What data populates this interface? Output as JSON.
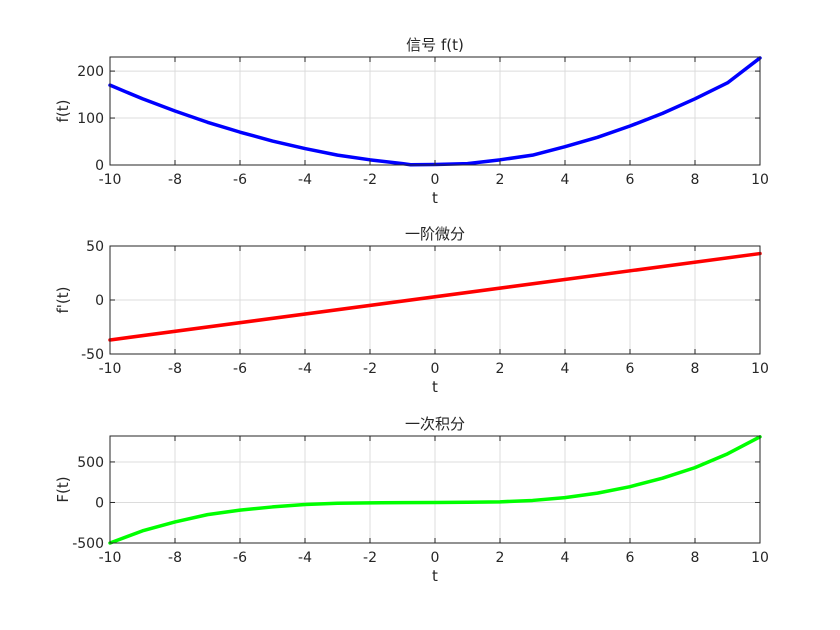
{
  "chart_data": [
    {
      "type": "line",
      "title": "信号 f(t)",
      "xlabel": "t",
      "ylabel": "f(t)",
      "xlim": [
        -10,
        10
      ],
      "ylim": [
        0,
        230
      ],
      "xticks": [
        "-10",
        "-8",
        "-6",
        "-4",
        "-2",
        "0",
        "2",
        "4",
        "6",
        "8",
        "10"
      ],
      "yticks": [
        "0",
        "100",
        "200"
      ],
      "grid": true,
      "series": [
        {
          "color": "#0000ff",
          "x": [
            -10,
            -9,
            -8,
            -7,
            -6,
            -5,
            -4,
            -3,
            -2,
            -1,
            -0.75,
            0,
            1,
            2,
            3,
            4,
            5,
            6,
            7,
            8,
            9,
            10
          ],
          "y": [
            170,
            141,
            115,
            91,
            70,
            51,
            35,
            21,
            11,
            3,
            0.5,
            1,
            3,
            11,
            21,
            39,
            59,
            83,
            110,
            141,
            175,
            228
          ]
        }
      ]
    },
    {
      "type": "line",
      "title": "一阶微分",
      "xlabel": "t",
      "ylabel": "f'(t)",
      "xlim": [
        -10,
        10
      ],
      "ylim": [
        -50,
        50
      ],
      "xticks": [
        "-10",
        "-8",
        "-6",
        "-4",
        "-2",
        "0",
        "2",
        "4",
        "6",
        "8",
        "10"
      ],
      "yticks": [
        "-50",
        "0",
        "50"
      ],
      "grid": true,
      "series": [
        {
          "color": "#ff0000",
          "x": [
            -10,
            10
          ],
          "y": [
            -37,
            43
          ]
        }
      ]
    },
    {
      "type": "line",
      "title": "一次积分",
      "xlabel": "t",
      "ylabel": "F(t)",
      "xlim": [
        -10,
        10
      ],
      "ylim": [
        -500,
        820
      ],
      "xticks": [
        "-10",
        "-8",
        "-6",
        "-4",
        "-2",
        "0",
        "2",
        "4",
        "6",
        "8",
        "10"
      ],
      "yticks": [
        "-500",
        "0",
        "500"
      ],
      "grid": true,
      "series": [
        {
          "color": "#00ff00",
          "x": [
            -10,
            -9,
            -8,
            -7,
            -6,
            -5,
            -4,
            -3,
            -2,
            -1,
            0,
            1,
            2,
            3,
            4,
            5,
            6,
            7,
            8,
            9,
            10
          ],
          "y": [
            -500,
            -350,
            -240,
            -150,
            -95,
            -55,
            -25,
            -10,
            -5,
            -2,
            0,
            2,
            8,
            25,
            60,
            115,
            195,
            300,
            430,
            600,
            810
          ]
        }
      ]
    }
  ]
}
